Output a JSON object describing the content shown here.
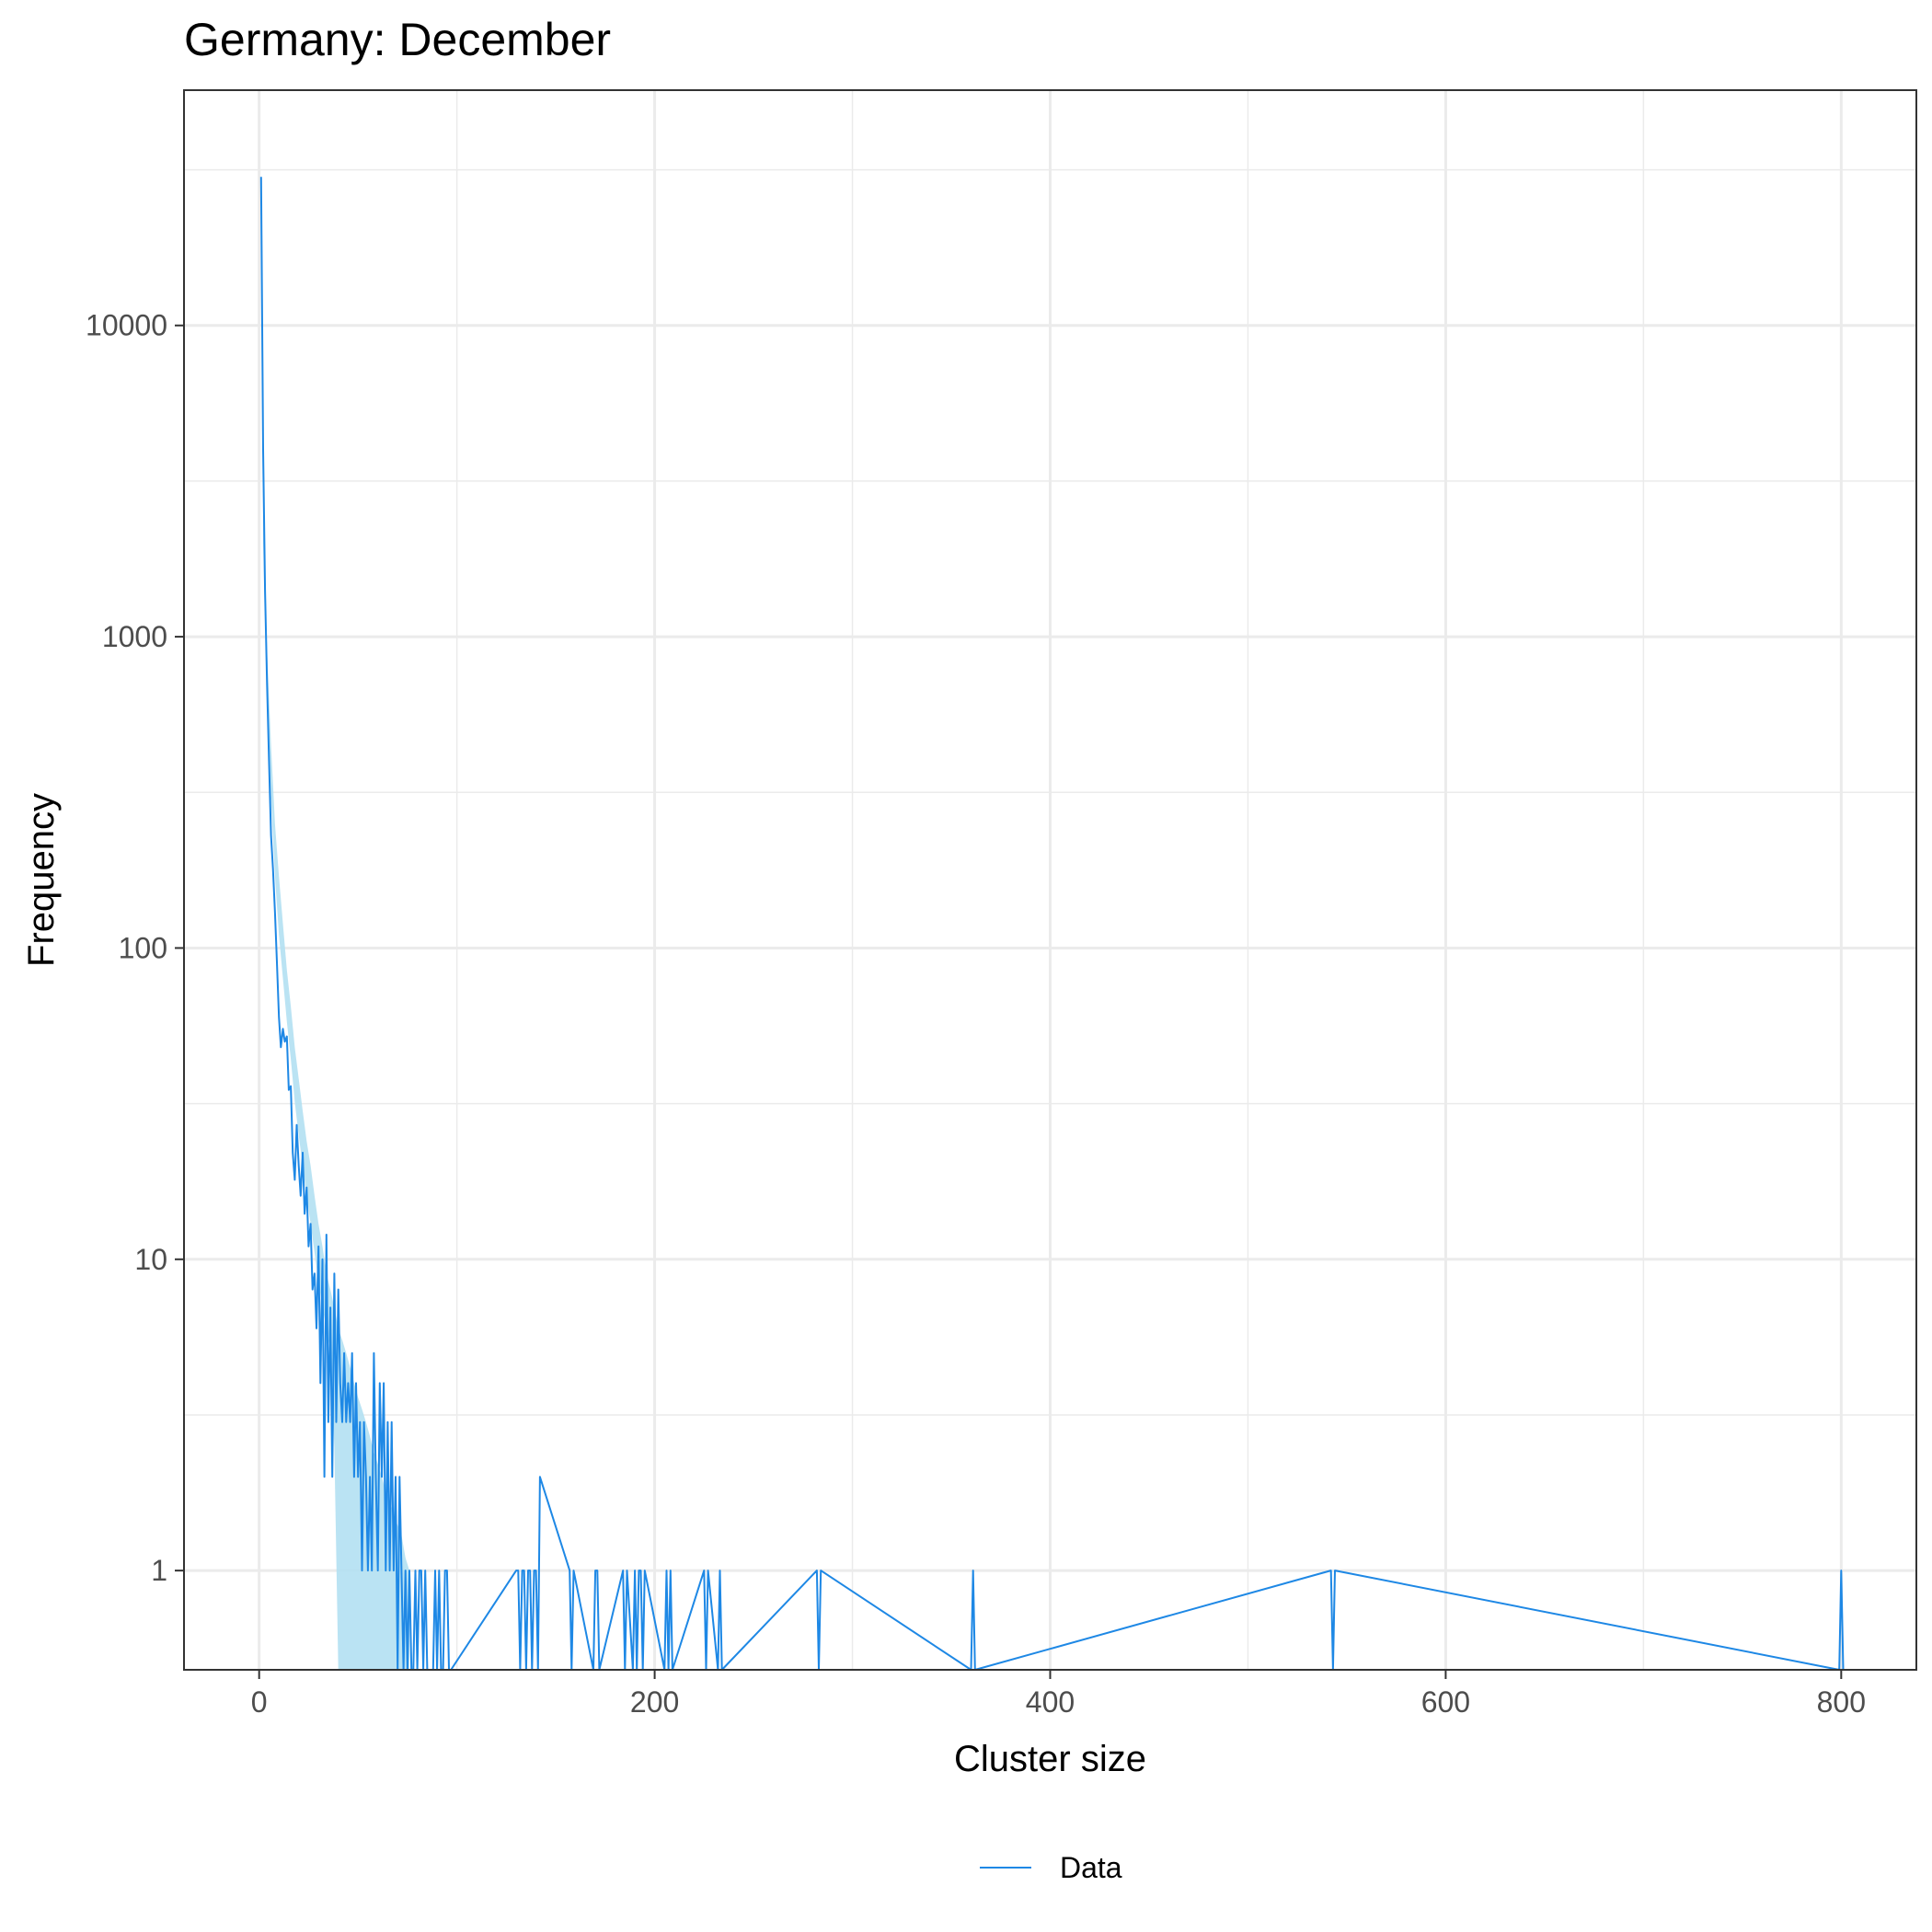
{
  "chart_data": {
    "type": "line",
    "title": "Germany: December",
    "xlabel": "Cluster size",
    "ylabel": "Frequency",
    "y_scale": "log",
    "xlim": [
      -38,
      838
    ],
    "ylim": [
      0.48,
      57000
    ],
    "x_ticks": [
      0,
      200,
      400,
      600,
      800
    ],
    "x_tick_labels": [
      "0",
      "200",
      "400",
      "600",
      "800"
    ],
    "y_ticks": [
      1,
      10,
      100,
      1000,
      10000
    ],
    "y_tick_labels": [
      "1",
      "10",
      "100",
      "1000",
      "10000"
    ],
    "grid": true,
    "legend_position": "bottom",
    "colors": {
      "line": "#1e88e5",
      "band": "#b3e0f2",
      "grid": "#ebebeb",
      "panel_border": "#333333"
    },
    "series": [
      {
        "name": "Data",
        "x": [
          1,
          2,
          3,
          4,
          5,
          6,
          7,
          8,
          9,
          10,
          11,
          12,
          13,
          14,
          15,
          16,
          17,
          18,
          19,
          20,
          21,
          22,
          23,
          24,
          25,
          26,
          27,
          28,
          29,
          30,
          31,
          32,
          33,
          34,
          35,
          36,
          37,
          38,
          39,
          40,
          41,
          42,
          43,
          44,
          45,
          46,
          47,
          48,
          49,
          50,
          51,
          52,
          53,
          54,
          55,
          56,
          57,
          58,
          59,
          60,
          61,
          62,
          63,
          64,
          65,
          66,
          67,
          68,
          69,
          70,
          71,
          72,
          73,
          74,
          75,
          76,
          77,
          78,
          79,
          80,
          81,
          82,
          83,
          84,
          85,
          86,
          87,
          88,
          89,
          90,
          91,
          92,
          93,
          94,
          95,
          96,
          97,
          130,
          131,
          132,
          133,
          134,
          135,
          136,
          137,
          138,
          139,
          140,
          141,
          142,
          157,
          158,
          159,
          169,
          170,
          171,
          172,
          184,
          185,
          186,
          189,
          190,
          191,
          192,
          193,
          194,
          195,
          205,
          206,
          207,
          208,
          209,
          225,
          226,
          227,
          232,
          233,
          234,
          282,
          283,
          284,
          360,
          361,
          362,
          542,
          543,
          544,
          799,
          800,
          801
        ],
        "y": [
          30000,
          4000,
          1400,
          700,
          400,
          230,
          180,
          130,
          90,
          60,
          48,
          55,
          50,
          52,
          35,
          36,
          22,
          18,
          27,
          20,
          16,
          22,
          14,
          17,
          11,
          13,
          8,
          9,
          6,
          11,
          4,
          10,
          2,
          12,
          3,
          7,
          2,
          9,
          3,
          8,
          4,
          3,
          5,
          3,
          4,
          3,
          5,
          2,
          4,
          2,
          3,
          1,
          3,
          2,
          1,
          2,
          1,
          5,
          2,
          1,
          4,
          2,
          4,
          1,
          3,
          1,
          3,
          1,
          2,
          0,
          2,
          1,
          0,
          1,
          0,
          1,
          0,
          0,
          1,
          0,
          1,
          1,
          0,
          1,
          0,
          0,
          0,
          0,
          1,
          0,
          1,
          0,
          0,
          1,
          1,
          0,
          0,
          1,
          1,
          0,
          1,
          1,
          0,
          1,
          1,
          0,
          1,
          1,
          0,
          2,
          1,
          0,
          1,
          0,
          1,
          1,
          0,
          1,
          0,
          1,
          0,
          1,
          0,
          1,
          1,
          0,
          1,
          0,
          1,
          0,
          1,
          0,
          1,
          0,
          1,
          0,
          1,
          0,
          1,
          0,
          1,
          0,
          1,
          0,
          1,
          0,
          1,
          0,
          1,
          0
        ]
      }
    ],
    "band": {
      "x": [
        2,
        4,
        6,
        8,
        10,
        12,
        14,
        16,
        18,
        20,
        22,
        24,
        26,
        28,
        30,
        32,
        34,
        36,
        38,
        40,
        42,
        44,
        46,
        48,
        50,
        52,
        54,
        56,
        58,
        60,
        62,
        64,
        66,
        68,
        70,
        72,
        74,
        76
      ],
      "upper": [
        3000,
        900,
        450,
        250,
        170,
        120,
        85,
        65,
        48,
        38,
        30,
        24,
        20,
        16,
        13,
        11,
        9,
        8,
        7,
        6,
        5.5,
        5,
        4.5,
        4,
        3.6,
        3.3,
        3,
        2.7,
        2.4,
        2.2,
        2,
        1.8,
        1.7,
        1.5,
        1.4,
        1.3,
        1.1,
        1
      ],
      "lower": [
        2000,
        600,
        300,
        170,
        110,
        80,
        58,
        44,
        32,
        25,
        20,
        16,
        13,
        10.5,
        8.5,
        7,
        6,
        5,
        2.5,
        0.48,
        0.48,
        0.48,
        0.48,
        0.48,
        0.48,
        0.48,
        0.48,
        0.48,
        0.48,
        0.48,
        0.48,
        0.48,
        0.48,
        0.48,
        0.48,
        0.48,
        0.48,
        0.48
      ]
    }
  }
}
